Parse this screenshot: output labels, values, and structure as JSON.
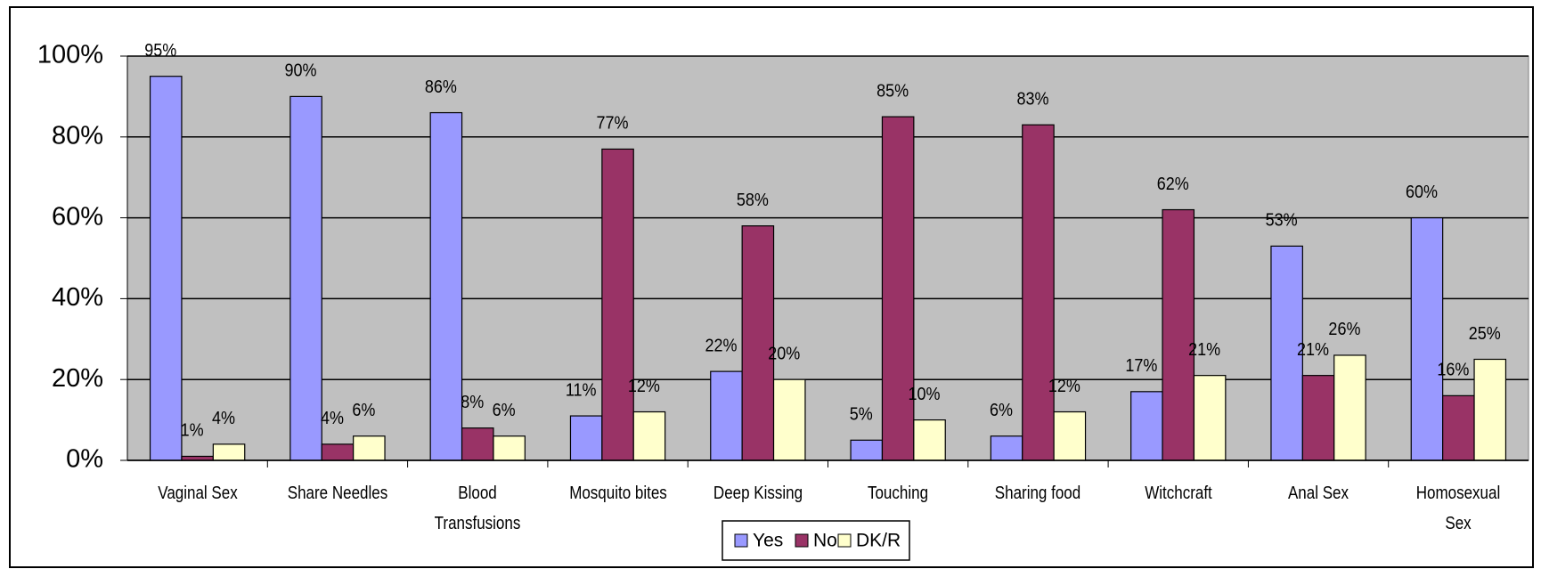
{
  "chart_data": {
    "type": "bar",
    "categories": [
      "Vaginal Sex",
      "Share Needles",
      "Blood Transfusions",
      "Mosquito bites",
      "Deep Kissing",
      "Touching",
      "Sharing food",
      "Witchcraft",
      "Anal Sex",
      "Homosexual Sex"
    ],
    "series": [
      {
        "name": "Yes",
        "color": "#9999ff",
        "values": [
          95,
          90,
          86,
          11,
          22,
          5,
          6,
          17,
          53,
          60
        ],
        "value_labels": [
          "95%",
          "90%",
          "86%",
          "11%",
          "22%",
          "5%",
          "6%",
          "17%",
          "53%",
          "60%"
        ]
      },
      {
        "name": "No",
        "color": "#993366",
        "values": [
          1,
          4,
          8,
          77,
          58,
          85,
          83,
          62,
          21,
          16
        ],
        "value_labels": [
          "1%",
          "4%",
          "8%",
          "77%",
          "58%",
          "85%",
          "83%",
          "62%",
          "21%",
          "16%"
        ]
      },
      {
        "name": "DK/R",
        "color": "#ffffcc",
        "values": [
          4,
          6,
          6,
          12,
          20,
          10,
          12,
          21,
          26,
          25
        ],
        "value_labels": [
          "4%",
          "6%",
          "6%",
          "12%",
          "20%",
          "10%",
          "12%",
          "21%",
          "26%",
          "25%"
        ]
      }
    ],
    "ylim": [
      0,
      100
    ],
    "yticks": [
      {
        "value": 0,
        "label": "0%"
      },
      {
        "value": 20,
        "label": "20%"
      },
      {
        "value": 40,
        "label": "40%"
      },
      {
        "value": 60,
        "label": "60%"
      },
      {
        "value": 80,
        "label": "80%"
      },
      {
        "value": 100,
        "label": "100%"
      }
    ],
    "grid": true,
    "legend": "bottom",
    "plot_background": "#c0c0c0"
  }
}
